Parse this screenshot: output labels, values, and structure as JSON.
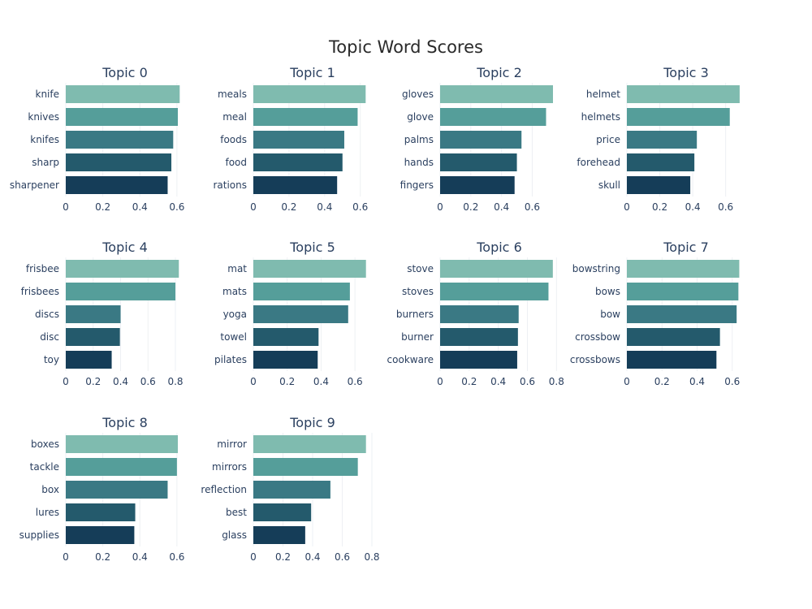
{
  "colors": [
    "#7fbbaf",
    "#559e9a",
    "#3a7984",
    "#245a6c",
    "#153d58"
  ],
  "chart_data": {
    "type": "bar",
    "orientation": "horizontal",
    "title": "Topic Word Scores",
    "grid": true,
    "charts": [
      {
        "title": "Topic 0",
        "categories": [
          "knife",
          "knives",
          "knifes",
          "sharp",
          "sharpener"
        ],
        "values": [
          0.615,
          0.605,
          0.58,
          0.57,
          0.55
        ],
        "xlim": [
          0,
          0.64
        ],
        "xticks": [
          0,
          0.2,
          0.4,
          0.6
        ],
        "xtick_labels": [
          "0",
          "0.2",
          "0.4",
          "0.6"
        ]
      },
      {
        "title": "Topic 1",
        "categories": [
          "meals",
          "meal",
          "foods",
          "food",
          "rations"
        ],
        "values": [
          0.63,
          0.585,
          0.51,
          0.5,
          0.47
        ],
        "xlim": [
          0,
          0.665
        ],
        "xticks": [
          0,
          0.2,
          0.4,
          0.6
        ],
        "xtick_labels": [
          "0",
          "0.2",
          "0.4",
          "0.6"
        ]
      },
      {
        "title": "Topic 2",
        "categories": [
          "gloves",
          "glove",
          "palms",
          "hands",
          "fingers"
        ],
        "values": [
          0.735,
          0.69,
          0.53,
          0.5,
          0.485
        ],
        "xlim": [
          0,
          0.772
        ],
        "xticks": [
          0,
          0.2,
          0.4,
          0.6
        ],
        "xtick_labels": [
          "0",
          "0.2",
          "0.4",
          "0.6"
        ]
      },
      {
        "title": "Topic 3",
        "categories": [
          "helmet",
          "helmets",
          "price",
          "forehead",
          "skull"
        ],
        "values": [
          0.685,
          0.625,
          0.425,
          0.41,
          0.385
        ],
        "xlim": [
          0,
          0.72
        ],
        "xticks": [
          0,
          0.2,
          0.4,
          0.6
        ],
        "xtick_labels": [
          "0",
          "0.2",
          "0.4",
          "0.6"
        ]
      },
      {
        "title": "Topic 4",
        "categories": [
          "frisbee",
          "frisbees",
          "discs",
          "disc",
          "toy"
        ],
        "values": [
          0.825,
          0.8,
          0.4,
          0.395,
          0.335
        ],
        "xlim": [
          0,
          0.865
        ],
        "xticks": [
          0,
          0.2,
          0.4,
          0.6,
          0.8
        ],
        "xtick_labels": [
          "0",
          "0.2",
          "0.4",
          "0.6",
          "0.8"
        ]
      },
      {
        "title": "Topic 5",
        "categories": [
          "mat",
          "mats",
          "yoga",
          "towel",
          "pilates"
        ],
        "values": [
          0.665,
          0.57,
          0.56,
          0.385,
          0.38
        ],
        "xlim": [
          0,
          0.7
        ],
        "xticks": [
          0,
          0.2,
          0.4,
          0.6
        ],
        "xtick_labels": [
          "0",
          "0.2",
          "0.4",
          "0.6"
        ]
      },
      {
        "title": "Topic 6",
        "categories": [
          "stove",
          "stoves",
          "burners",
          "burner",
          "cookware"
        ],
        "values": [
          0.775,
          0.745,
          0.54,
          0.535,
          0.53
        ],
        "xlim": [
          0,
          0.815
        ],
        "xticks": [
          0,
          0.2,
          0.4,
          0.6,
          0.8
        ],
        "xtick_labels": [
          "0",
          "0.2",
          "0.4",
          "0.6",
          "0.8"
        ]
      },
      {
        "title": "Topic 7",
        "categories": [
          "bowstring",
          "bows",
          "bow",
          "crossbow",
          "crossbows"
        ],
        "values": [
          0.64,
          0.635,
          0.625,
          0.53,
          0.51
        ],
        "xlim": [
          0,
          0.675
        ],
        "xticks": [
          0,
          0.2,
          0.4,
          0.6
        ],
        "xtick_labels": [
          "0",
          "0.2",
          "0.4",
          "0.6"
        ]
      },
      {
        "title": "Topic 8",
        "categories": [
          "boxes",
          "tackle",
          "box",
          "lures",
          "supplies"
        ],
        "values": [
          0.605,
          0.6,
          0.55,
          0.375,
          0.37
        ],
        "xlim": [
          0,
          0.64
        ],
        "xticks": [
          0,
          0.2,
          0.4,
          0.6
        ],
        "xtick_labels": [
          "0",
          "0.2",
          "0.4",
          "0.6"
        ]
      },
      {
        "title": "Topic 9",
        "categories": [
          "mirror",
          "mirrors",
          "reflection",
          "best",
          "glass"
        ],
        "values": [
          0.76,
          0.705,
          0.52,
          0.39,
          0.35
        ],
        "xlim": [
          0,
          0.8
        ],
        "xticks": [
          0,
          0.2,
          0.4,
          0.6,
          0.8
        ],
        "xtick_labels": [
          "0",
          "0.2",
          "0.4",
          "0.6",
          "0.8"
        ]
      }
    ]
  }
}
